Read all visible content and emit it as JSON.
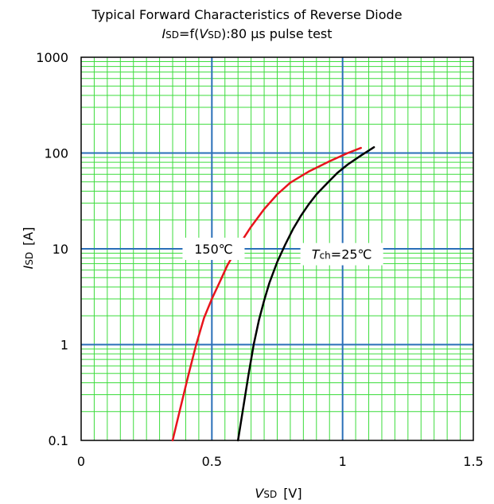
{
  "chart_data": {
    "type": "line",
    "title": "Typical Forward Characteristics of Reverse Diode",
    "subtitle": {
      "symbol": "I",
      "symbol_sub": "SD",
      "mid1": "=f(",
      "arg": "V",
      "arg_sub": "SD",
      "rest": "):80 µs pulse test"
    },
    "xlabel": {
      "symbol": "V",
      "sub": "SD",
      "unit": "[V]"
    },
    "ylabel": {
      "symbol": "I",
      "sub": "SD",
      "unit": "[A]"
    },
    "x_scale": "linear",
    "y_scale": "log",
    "xlim": [
      0,
      1.5
    ],
    "ylim": [
      0.1,
      1000
    ],
    "x_ticks": [
      0,
      0.5,
      1,
      1.5
    ],
    "x_tick_labels": [
      "0",
      "0.5",
      "1",
      "1.5"
    ],
    "y_ticks": [
      0.1,
      1,
      10,
      100,
      1000
    ],
    "y_tick_labels": [
      "0.1",
      "1",
      "10",
      "100",
      "1000"
    ],
    "grid": true,
    "series": [
      {
        "color": "#e8141c",
        "x": [
          0.35,
          0.38,
          0.41,
          0.44,
          0.47,
          0.5,
          0.53,
          0.56,
          0.6,
          0.65,
          0.7,
          0.75,
          0.8,
          0.87,
          0.95,
          1.02,
          1.07
        ],
        "y": [
          0.1,
          0.22,
          0.48,
          1.0,
          1.9,
          3.0,
          4.5,
          6.8,
          10.5,
          17,
          26,
          37,
          49,
          64,
          82,
          100,
          113
        ]
      },
      {
        "color": "#000000",
        "x": [
          0.6,
          0.62,
          0.64,
          0.66,
          0.68,
          0.7,
          0.72,
          0.75,
          0.78,
          0.81,
          0.84,
          0.87,
          0.9,
          0.94,
          0.98,
          1.02,
          1.07,
          1.12
        ],
        "y": [
          0.1,
          0.22,
          0.48,
          1.0,
          1.8,
          2.9,
          4.4,
          7.3,
          11,
          16,
          22,
          29,
          37,
          48,
          62,
          76,
          94,
          115
        ]
      }
    ],
    "annotations": [
      {
        "text": "150℃",
        "x": 0.4,
        "y": 10
      },
      {
        "symbol": "T",
        "sub": "ch",
        "rest": "=25℃",
        "x": 0.93,
        "y": 8.8
      }
    ]
  }
}
